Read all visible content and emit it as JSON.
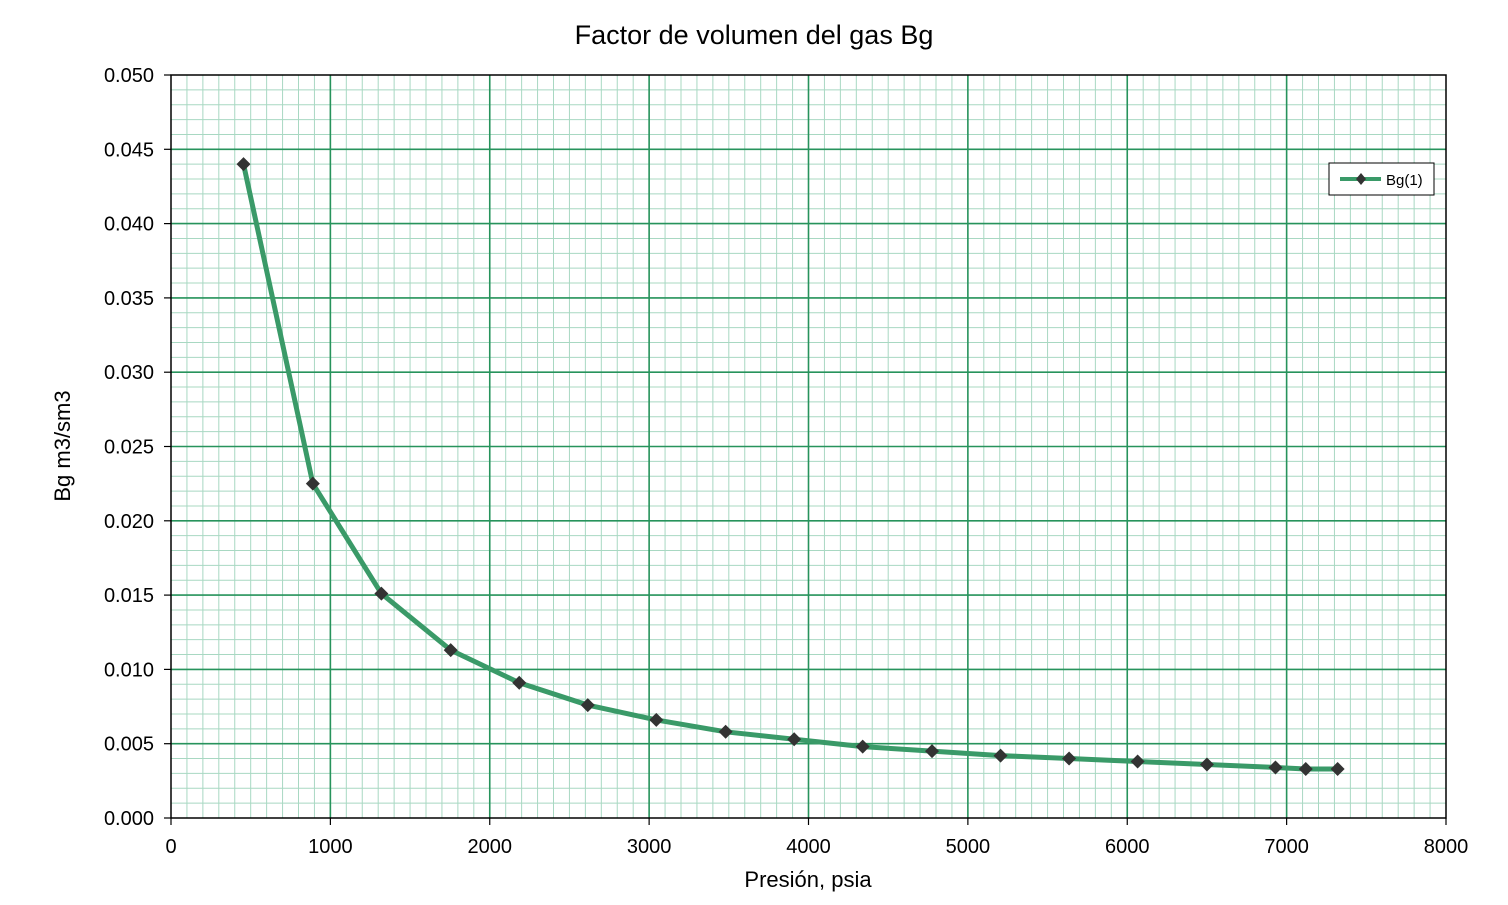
{
  "chart_data": {
    "type": "line",
    "title": "Factor de volumen del gas Bg",
    "xlabel": "Presión, psia",
    "ylabel": "Bg m3/sm3",
    "xlim": [
      0,
      8000
    ],
    "ylim": [
      0,
      0.05
    ],
    "x_ticks": [
      "0",
      "1000",
      "2000",
      "3000",
      "4000",
      "5000",
      "6000",
      "7000",
      "8000"
    ],
    "y_ticks": [
      "0.000",
      "0.005",
      "0.010",
      "0.015",
      "0.020",
      "0.025",
      "0.030",
      "0.035",
      "0.040",
      "0.045",
      "0.050"
    ],
    "grid": true,
    "legend_position": "top-right",
    "series": [
      {
        "name": "Bg(1)",
        "color": "#3a9a68",
        "marker": "diamond",
        "marker_color": "#333333",
        "x": [
          455,
          890,
          1320,
          1755,
          2185,
          2615,
          3045,
          3480,
          3910,
          4340,
          4775,
          5205,
          5635,
          6065,
          6500,
          6930,
          7120,
          7320
        ],
        "values": [
          0.044,
          0.0225,
          0.0151,
          0.0113,
          0.0091,
          0.0076,
          0.0066,
          0.0058,
          0.0053,
          0.0048,
          0.0045,
          0.0042,
          0.004,
          0.0038,
          0.0036,
          0.0034,
          0.0033,
          0.0033
        ]
      }
    ]
  }
}
